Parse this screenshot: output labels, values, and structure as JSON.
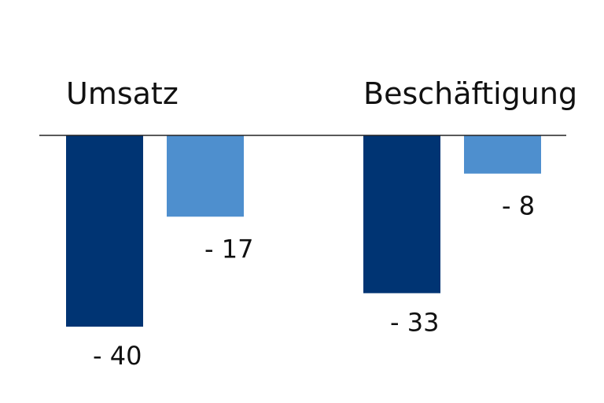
{
  "chart_data": {
    "type": "bar",
    "categories": [
      "Umsatz",
      "Beschäftigung"
    ],
    "series": [
      {
        "values": [
          -40,
          -33
        ],
        "labels": [
          "- 40",
          "- 33"
        ],
        "color": "#003473"
      },
      {
        "values": [
          -17,
          -8
        ],
        "labels": [
          "- 17",
          "- 8"
        ],
        "color": "#4e8fce"
      }
    ],
    "ylim": [
      -40,
      0
    ],
    "grid": false,
    "legend": "none",
    "baseline_color": "#222222"
  }
}
